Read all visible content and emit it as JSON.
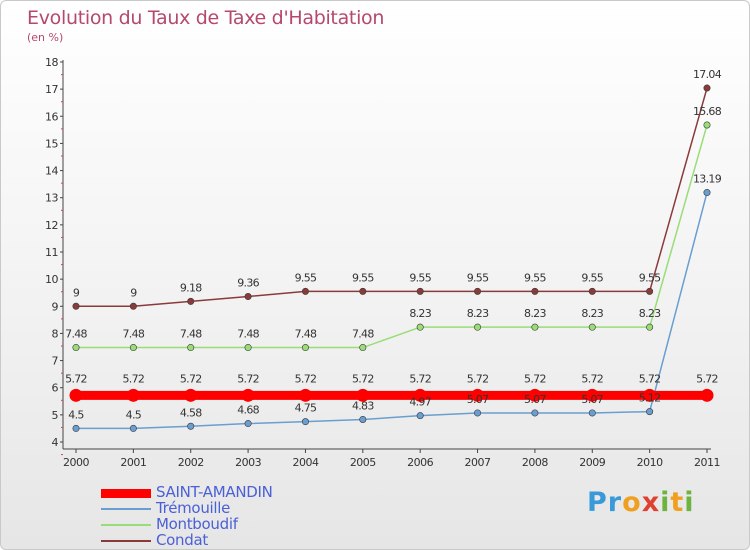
{
  "header": {
    "title": "Evolution du Taux de Taxe d'Habitation",
    "unit": "(en %)"
  },
  "logo": {
    "text": "Proxiti"
  },
  "chart_data": {
    "type": "line",
    "title": "Evolution du Taux de Taxe d'Habitation",
    "ylabel": "(en %)",
    "xlabel": "",
    "x": [
      "2000",
      "2001",
      "2002",
      "2003",
      "2004",
      "2005",
      "2006",
      "2007",
      "2008",
      "2009",
      "2010",
      "2011"
    ],
    "ylim": [
      4,
      18
    ],
    "yticks": [
      4,
      5,
      6,
      7,
      8,
      9,
      10,
      11,
      12,
      13,
      14,
      15,
      16,
      17,
      18
    ],
    "grid": false,
    "legend_position": "bottom-left",
    "series": [
      {
        "name": "SAINT-AMANDIN",
        "color": "#ff0000",
        "values": [
          5.72,
          5.72,
          5.72,
          5.72,
          5.72,
          5.72,
          5.72,
          5.72,
          5.72,
          5.72,
          5.72,
          5.72
        ],
        "labels": [
          "5.72",
          "5.72",
          "5.72",
          "5.72",
          "5.72",
          "5.72",
          "5.72",
          "5.72",
          "5.72",
          "5.72",
          "5.72",
          "5.72"
        ]
      },
      {
        "name": "Trémouille",
        "color": "#6a9ed0",
        "values": [
          4.5,
          4.5,
          4.58,
          4.68,
          4.75,
          4.83,
          4.97,
          5.07,
          5.07,
          5.07,
          5.12,
          13.19
        ],
        "labels": [
          "4.5",
          "4.5",
          "4.58",
          "4.68",
          "4.75",
          "4.83",
          "4.97",
          "5.07",
          "5.07",
          "5.07",
          "5.12",
          "13.19"
        ]
      },
      {
        "name": "Montboudif",
        "color": "#99dd77",
        "values": [
          7.48,
          7.48,
          7.48,
          7.48,
          7.48,
          7.48,
          8.23,
          8.23,
          8.23,
          8.23,
          8.23,
          15.68
        ],
        "labels": [
          "7.48",
          "7.48",
          "7.48",
          "7.48",
          "7.48",
          "7.48",
          "8.23",
          "8.23",
          "8.23",
          "8.23",
          "8.23",
          "15.68"
        ]
      },
      {
        "name": "Condat",
        "color": "#8b3a3a",
        "values": [
          9,
          9,
          9.18,
          9.36,
          9.55,
          9.55,
          9.55,
          9.55,
          9.55,
          9.55,
          9.55,
          17.04
        ],
        "labels": [
          "9",
          "9",
          "9.18",
          "9.36",
          "9.55",
          "9.55",
          "9.55",
          "9.55",
          "9.55",
          "9.55",
          "9.55",
          "17.04"
        ]
      }
    ]
  }
}
